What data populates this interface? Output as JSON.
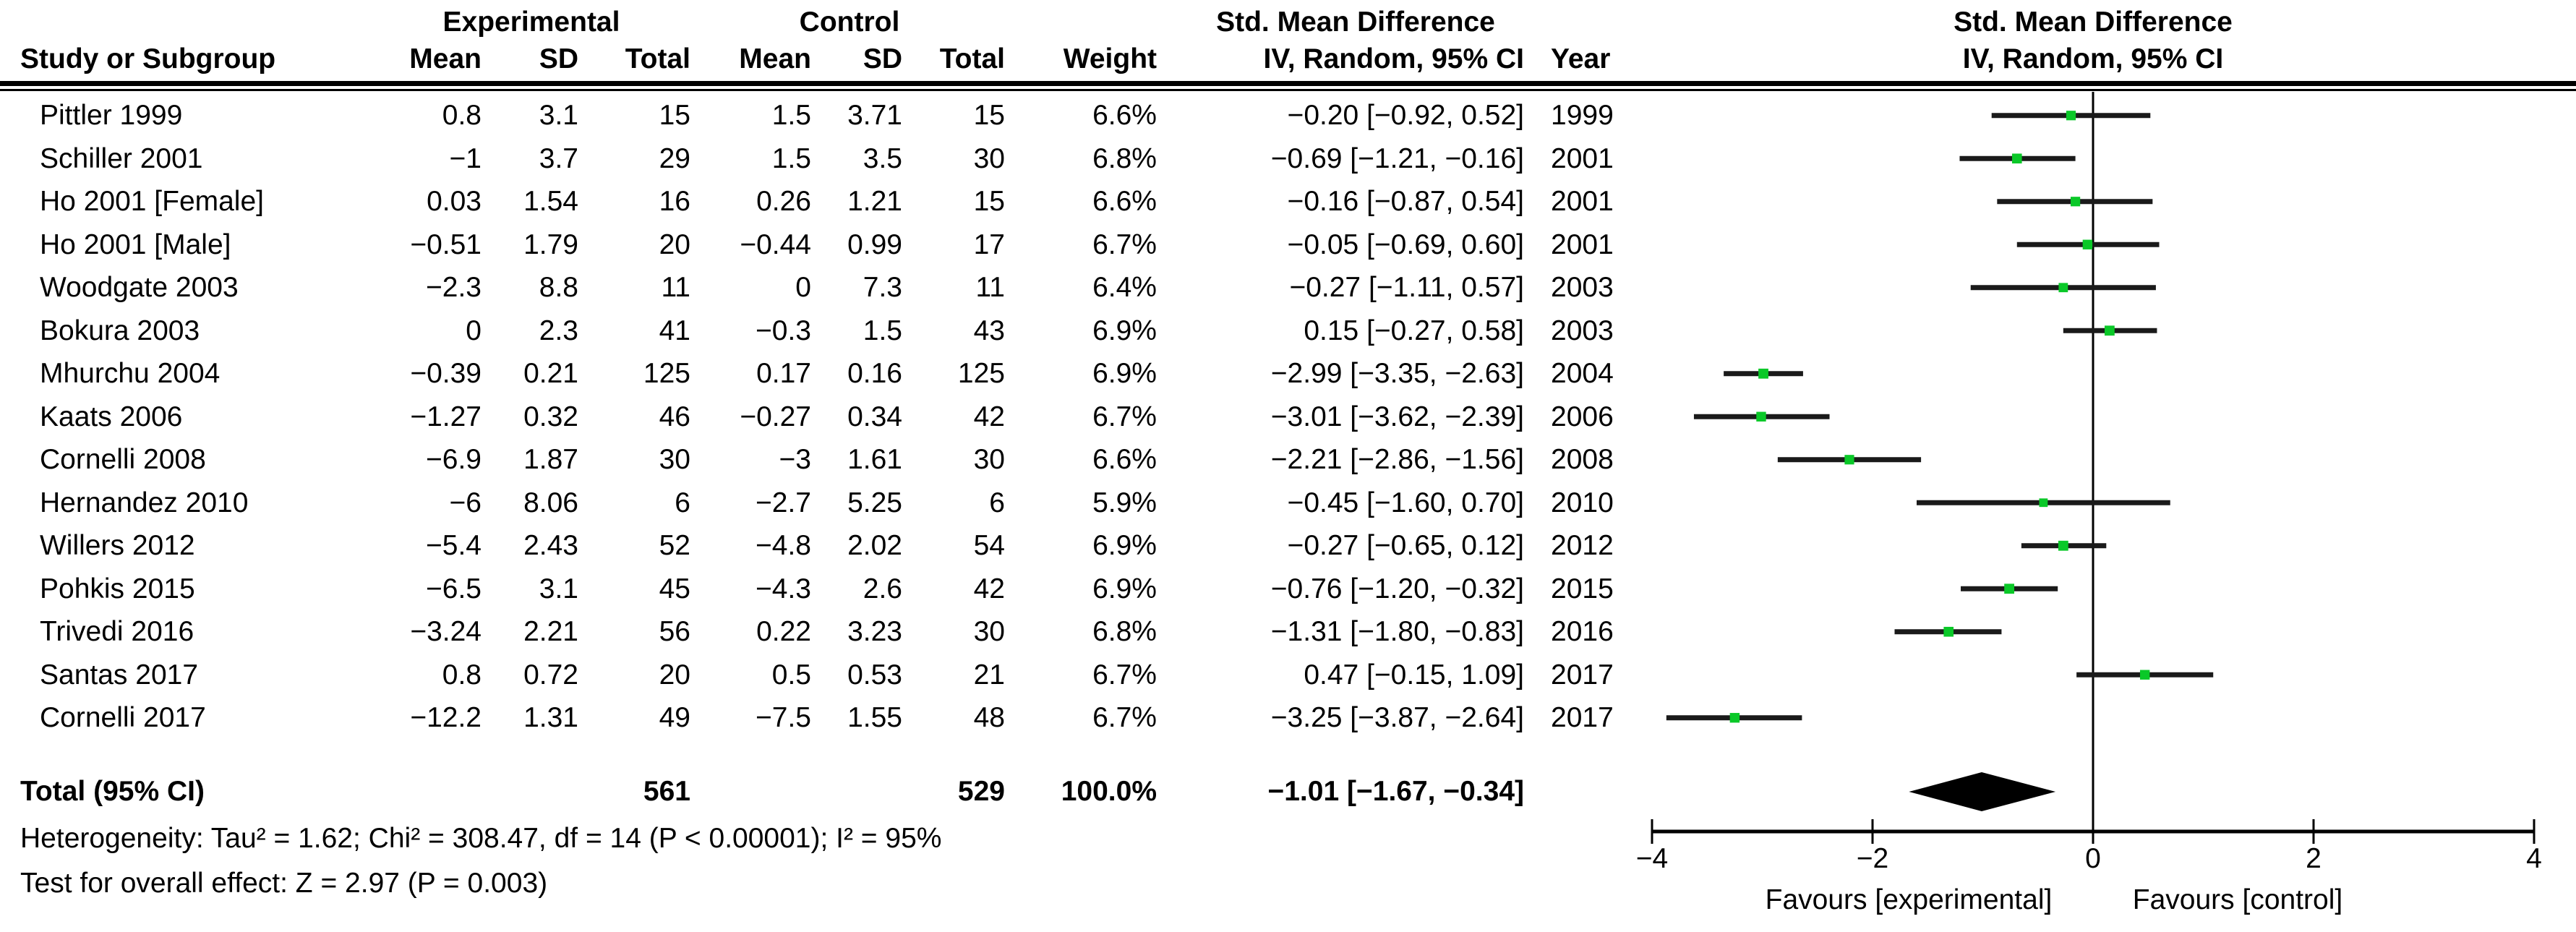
{
  "table": {
    "group_headers": {
      "experimental": "Experimental",
      "control": "Control",
      "smd_table": "Std. Mean Difference",
      "smd_plot": "Std. Mean Difference"
    },
    "col_headers": {
      "study": "Study or Subgroup",
      "e_mean": "Mean",
      "e_sd": "SD",
      "e_total": "Total",
      "c_mean": "Mean",
      "c_sd": "SD",
      "c_total": "Total",
      "weight": "Weight",
      "ci": "IV, Random, 95% CI",
      "year": "Year",
      "ci_plot": "IV, Random, 95% CI"
    },
    "rows": [
      {
        "study": "Pittler 1999",
        "e_mean": "0.8",
        "e_sd": "3.1",
        "e_total": "15",
        "c_mean": "1.5",
        "c_sd": "3.71",
        "c_total": "15",
        "weight": "6.6%",
        "ci": "−0.20 [−0.92, 0.52]",
        "year": "1999"
      },
      {
        "study": "Schiller 2001",
        "e_mean": "−1",
        "e_sd": "3.7",
        "e_total": "29",
        "c_mean": "1.5",
        "c_sd": "3.5",
        "c_total": "30",
        "weight": "6.8%",
        "ci": "−0.69 [−1.21, −0.16]",
        "year": "2001"
      },
      {
        "study": "Ho 2001 [Female]",
        "e_mean": "0.03",
        "e_sd": "1.54",
        "e_total": "16",
        "c_mean": "0.26",
        "c_sd": "1.21",
        "c_total": "15",
        "weight": "6.6%",
        "ci": "−0.16 [−0.87, 0.54]",
        "year": "2001"
      },
      {
        "study": "Ho 2001 [Male]",
        "e_mean": "−0.51",
        "e_sd": "1.79",
        "e_total": "20",
        "c_mean": "−0.44",
        "c_sd": "0.99",
        "c_total": "17",
        "weight": "6.7%",
        "ci": "−0.05 [−0.69, 0.60]",
        "year": "2001"
      },
      {
        "study": "Woodgate 2003",
        "e_mean": "−2.3",
        "e_sd": "8.8",
        "e_total": "11",
        "c_mean": "0",
        "c_sd": "7.3",
        "c_total": "11",
        "weight": "6.4%",
        "ci": "−0.27 [−1.11, 0.57]",
        "year": "2003"
      },
      {
        "study": "Bokura 2003",
        "e_mean": "0",
        "e_sd": "2.3",
        "e_total": "41",
        "c_mean": "−0.3",
        "c_sd": "1.5",
        "c_total": "43",
        "weight": "6.9%",
        "ci": "0.15 [−0.27, 0.58]",
        "year": "2003"
      },
      {
        "study": "Mhurchu 2004",
        "e_mean": "−0.39",
        "e_sd": "0.21",
        "e_total": "125",
        "c_mean": "0.17",
        "c_sd": "0.16",
        "c_total": "125",
        "weight": "6.9%",
        "ci": "−2.99 [−3.35, −2.63]",
        "year": "2004"
      },
      {
        "study": "Kaats 2006",
        "e_mean": "−1.27",
        "e_sd": "0.32",
        "e_total": "46",
        "c_mean": "−0.27",
        "c_sd": "0.34",
        "c_total": "42",
        "weight": "6.7%",
        "ci": "−3.01 [−3.62, −2.39]",
        "year": "2006"
      },
      {
        "study": "Cornelli 2008",
        "e_mean": "−6.9",
        "e_sd": "1.87",
        "e_total": "30",
        "c_mean": "−3",
        "c_sd": "1.61",
        "c_total": "30",
        "weight": "6.6%",
        "ci": "−2.21 [−2.86, −1.56]",
        "year": "2008"
      },
      {
        "study": "Hernandez 2010",
        "e_mean": "−6",
        "e_sd": "8.06",
        "e_total": "6",
        "c_mean": "−2.7",
        "c_sd": "5.25",
        "c_total": "6",
        "weight": "5.9%",
        "ci": "−0.45 [−1.60, 0.70]",
        "year": "2010"
      },
      {
        "study": "Willers 2012",
        "e_mean": "−5.4",
        "e_sd": "2.43",
        "e_total": "52",
        "c_mean": "−4.8",
        "c_sd": "2.02",
        "c_total": "54",
        "weight": "6.9%",
        "ci": "−0.27 [−0.65, 0.12]",
        "year": "2012"
      },
      {
        "study": "Pohkis 2015",
        "e_mean": "−6.5",
        "e_sd": "3.1",
        "e_total": "45",
        "c_mean": "−4.3",
        "c_sd": "2.6",
        "c_total": "42",
        "weight": "6.9%",
        "ci": "−0.76 [−1.20, −0.32]",
        "year": "2015"
      },
      {
        "study": "Trivedi 2016",
        "e_mean": "−3.24",
        "e_sd": "2.21",
        "e_total": "56",
        "c_mean": "0.22",
        "c_sd": "3.23",
        "c_total": "30",
        "weight": "6.8%",
        "ci": "−1.31 [−1.80, −0.83]",
        "year": "2016"
      },
      {
        "study": "Santas 2017",
        "e_mean": "0.8",
        "e_sd": "0.72",
        "e_total": "20",
        "c_mean": "0.5",
        "c_sd": "0.53",
        "c_total": "21",
        "weight": "6.7%",
        "ci": "0.47 [−0.15, 1.09]",
        "year": "2017"
      },
      {
        "study": "Cornelli 2017",
        "e_mean": "−12.2",
        "e_sd": "1.31",
        "e_total": "49",
        "c_mean": "−7.5",
        "c_sd": "1.55",
        "c_total": "48",
        "weight": "6.7%",
        "ci": "−3.25 [−3.87, −2.64]",
        "year": "2017"
      }
    ],
    "total_row": {
      "label": "Total (95% CI)",
      "e_total": "561",
      "c_total": "529",
      "weight": "100.0%",
      "ci": "−1.01 [−1.67, −0.34]"
    },
    "footer": {
      "heterogeneity": "Heterogeneity: Tau² = 1.62; Chi² = 308.47, df = 14 (P < 0.00001); I² = 95%",
      "overall_effect": "Test for overall effect: Z = 2.97 (P = 0.003)"
    }
  },
  "chart_data": {
    "type": "forest",
    "title": "Std. Mean Difference",
    "subtitle": "IV, Random, 95% CI",
    "xlim": [
      -4,
      4
    ],
    "ticks": [
      {
        "v": -4,
        "label": "−4"
      },
      {
        "v": -2,
        "label": "−2"
      },
      {
        "v": 0,
        "label": "0"
      },
      {
        "v": 2,
        "label": "2"
      },
      {
        "v": 4,
        "label": "4"
      }
    ],
    "favours_left": "Favours [experimental]",
    "favours_right": "Favours [control]",
    "studies": [
      {
        "name": "Pittler 1999",
        "smd": -0.2,
        "lo": -0.92,
        "hi": 0.52,
        "weight": 6.6
      },
      {
        "name": "Schiller 2001",
        "smd": -0.69,
        "lo": -1.21,
        "hi": -0.16,
        "weight": 6.8
      },
      {
        "name": "Ho 2001 [Female]",
        "smd": -0.16,
        "lo": -0.87,
        "hi": 0.54,
        "weight": 6.6
      },
      {
        "name": "Ho 2001 [Male]",
        "smd": -0.05,
        "lo": -0.69,
        "hi": 0.6,
        "weight": 6.7
      },
      {
        "name": "Woodgate 2003",
        "smd": -0.27,
        "lo": -1.11,
        "hi": 0.57,
        "weight": 6.4
      },
      {
        "name": "Bokura 2003",
        "smd": 0.15,
        "lo": -0.27,
        "hi": 0.58,
        "weight": 6.9
      },
      {
        "name": "Mhurchu 2004",
        "smd": -2.99,
        "lo": -3.35,
        "hi": -2.63,
        "weight": 6.9
      },
      {
        "name": "Kaats 2006",
        "smd": -3.01,
        "lo": -3.62,
        "hi": -2.39,
        "weight": 6.7
      },
      {
        "name": "Cornelli 2008",
        "smd": -2.21,
        "lo": -2.86,
        "hi": -1.56,
        "weight": 6.6
      },
      {
        "name": "Hernandez 2010",
        "smd": -0.45,
        "lo": -1.6,
        "hi": 0.7,
        "weight": 5.9
      },
      {
        "name": "Willers 2012",
        "smd": -0.27,
        "lo": -0.65,
        "hi": 0.12,
        "weight": 6.9
      },
      {
        "name": "Pohkis 2015",
        "smd": -0.76,
        "lo": -1.2,
        "hi": -0.32,
        "weight": 6.9
      },
      {
        "name": "Trivedi 2016",
        "smd": -1.31,
        "lo": -1.8,
        "hi": -0.83,
        "weight": 6.8
      },
      {
        "name": "Santas 2017",
        "smd": 0.47,
        "lo": -0.15,
        "hi": 1.09,
        "weight": 6.7
      },
      {
        "name": "Cornelli 2017",
        "smd": -3.25,
        "lo": -3.87,
        "hi": -2.64,
        "weight": 6.7
      }
    ],
    "total": {
      "smd": -1.01,
      "lo": -1.67,
      "hi": -0.34
    },
    "colors": {
      "marker": "#0ac828",
      "line": "#1a1a1a",
      "axis": "#000000",
      "diamond": "#000000"
    }
  }
}
